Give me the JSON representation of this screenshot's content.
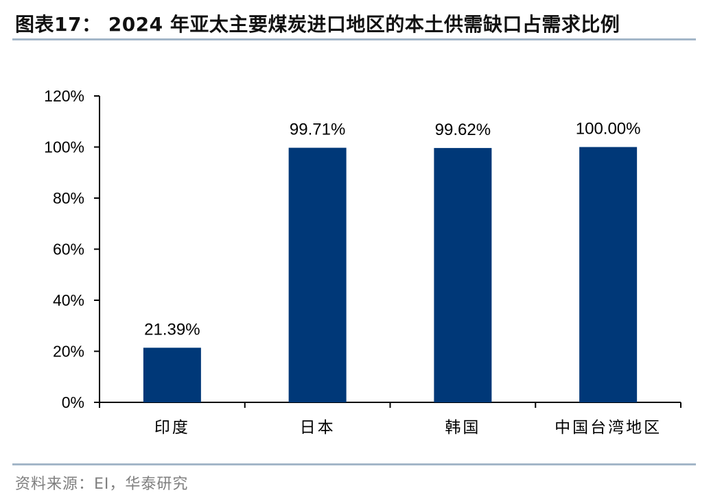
{
  "header": {
    "title": "图表17： 2024 年亚太主要煤炭进口地区的本土供需缺口占需求比例"
  },
  "footer": {
    "source": "资料来源：EI，华泰研究"
  },
  "colors": {
    "bar": "#003878",
    "rule": "#a3b6c8",
    "axis": "#000000"
  },
  "chart_data": {
    "type": "bar",
    "title": "",
    "xlabel": "",
    "ylabel": "",
    "categories": [
      "印度",
      "日本",
      "韩国",
      "中国台湾地区"
    ],
    "values": [
      21.39,
      99.71,
      99.62,
      100.0
    ],
    "value_labels": [
      "21.39%",
      "99.71%",
      "99.62%",
      "100.00%"
    ],
    "ylim": [
      0,
      120
    ],
    "yticks": [
      0,
      20,
      40,
      60,
      80,
      100,
      120
    ],
    "ytick_labels": [
      "0%",
      "20%",
      "40%",
      "60%",
      "80%",
      "100%",
      "120%"
    ],
    "grid": false,
    "legend": "none"
  }
}
